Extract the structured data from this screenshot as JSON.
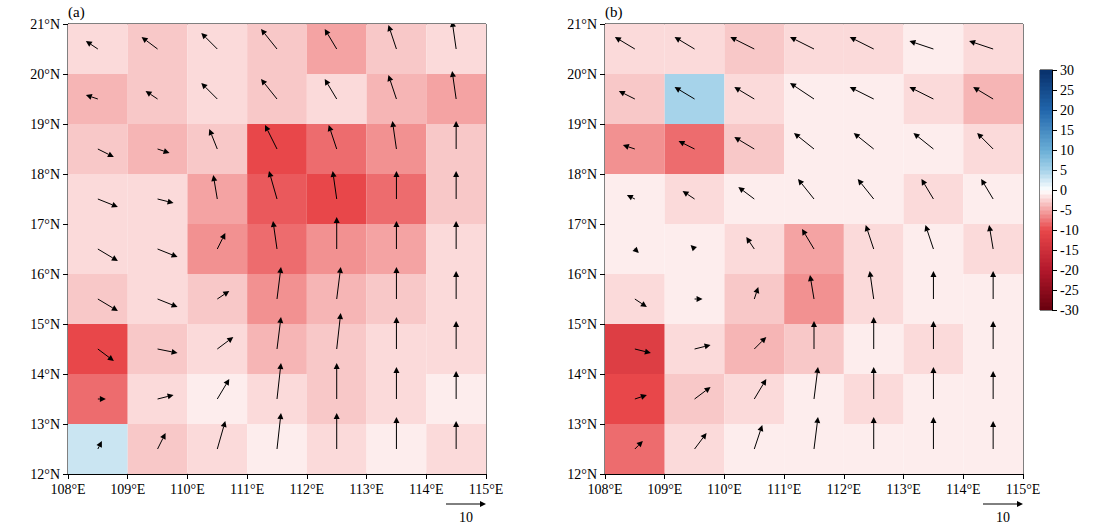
{
  "chart_data": [
    {
      "type": "vector_field",
      "panel_label": "(a)",
      "grid": false,
      "xlim": [
        108,
        115
      ],
      "xticks": [
        {
          "value": 108,
          "label": "108°E"
        },
        {
          "value": 109,
          "label": "109°E"
        },
        {
          "value": 110,
          "label": "110°E"
        },
        {
          "value": 111,
          "label": "111°E"
        },
        {
          "value": 112,
          "label": "112°E"
        },
        {
          "value": 113,
          "label": "113°E"
        },
        {
          "value": 114,
          "label": "114°E"
        },
        {
          "value": 115,
          "label": "115°E"
        }
      ],
      "ylim": [
        12,
        21
      ],
      "yticks": [
        {
          "value": 12,
          "label": "12°N"
        },
        {
          "value": 13,
          "label": "13°N"
        },
        {
          "value": 14,
          "label": "14°N"
        },
        {
          "value": 15,
          "label": "15°N"
        },
        {
          "value": 16,
          "label": "16°N"
        },
        {
          "value": 17,
          "label": "17°N"
        },
        {
          "value": 18,
          "label": "18°N"
        },
        {
          "value": 19,
          "label": "19°N"
        },
        {
          "value": 20,
          "label": "20°N"
        },
        {
          "value": 21,
          "label": "21°N"
        }
      ],
      "lon": [
        108.5,
        109.5,
        110.5,
        111.5,
        112.5,
        113.5,
        114.5
      ],
      "lat": [
        20.5,
        19.5,
        18.5,
        17.5,
        16.5,
        15.5,
        14.5,
        13.5,
        12.5
      ],
      "field": [
        [
          -2,
          -3,
          -2,
          -3,
          -5,
          -3,
          -2
        ],
        [
          -4,
          -3,
          -2,
          -3,
          -2,
          -4,
          -5
        ],
        [
          -3,
          -4,
          -3,
          -10,
          -8,
          -6,
          -3
        ],
        [
          -2,
          -2,
          -5,
          -9,
          -10,
          -8,
          -3
        ],
        [
          -2,
          -2,
          -6,
          -8,
          -6,
          -5,
          -2
        ],
        [
          -3,
          -2,
          -3,
          -6,
          -4,
          -3,
          -2
        ],
        [
          -10,
          -3,
          -2,
          -4,
          -3,
          -2,
          -2
        ],
        [
          -8,
          -2,
          -1,
          -2,
          -3,
          -2,
          -1
        ],
        [
          3,
          -3,
          -2,
          -1,
          -2,
          -1,
          -2
        ]
      ],
      "u": [
        [
          -3,
          -4,
          -4,
          -4,
          -3,
          -2,
          -1
        ],
        [
          -3,
          -3,
          -4,
          -4,
          -3,
          -2,
          -1
        ],
        [
          4,
          3,
          -2,
          -3,
          -2,
          -1,
          0
        ],
        [
          5,
          4,
          -1,
          -2,
          -1,
          0,
          0
        ],
        [
          5,
          5,
          2,
          -1,
          0,
          0,
          0
        ],
        [
          5,
          5,
          3,
          1,
          1,
          0,
          0
        ],
        [
          4,
          5,
          4,
          1,
          1,
          0,
          0
        ],
        [
          2,
          4,
          3,
          1,
          0,
          0,
          0
        ],
        [
          1,
          2,
          2,
          1,
          0,
          0,
          0
        ]
      ],
      "v": [
        [
          2,
          3,
          4,
          5,
          5,
          6,
          7
        ],
        [
          1,
          2,
          4,
          5,
          5,
          6,
          7
        ],
        [
          -2,
          -1,
          5,
          6,
          6,
          7,
          7
        ],
        [
          -2,
          -1,
          6,
          7,
          7,
          7,
          7
        ],
        [
          -3,
          -2,
          4,
          7,
          8,
          7,
          7
        ],
        [
          -3,
          -2,
          2,
          8,
          8,
          8,
          7
        ],
        [
          -3,
          -1,
          3,
          8,
          9,
          8,
          7
        ],
        [
          0,
          1,
          5,
          9,
          9,
          8,
          7
        ],
        [
          2,
          4,
          7,
          9,
          9,
          8,
          7
        ]
      ],
      "reference_vector": 10
    },
    {
      "type": "vector_field",
      "panel_label": "(b)",
      "grid": false,
      "xlim": [
        108,
        115
      ],
      "xticks": [
        {
          "value": 108,
          "label": "108°E"
        },
        {
          "value": 109,
          "label": "109°E"
        },
        {
          "value": 110,
          "label": "110°E"
        },
        {
          "value": 111,
          "label": "111°E"
        },
        {
          "value": 112,
          "label": "112°E"
        },
        {
          "value": 113,
          "label": "113°E"
        },
        {
          "value": 114,
          "label": "114°E"
        },
        {
          "value": 115,
          "label": "115°E"
        }
      ],
      "ylim": [
        12,
        21
      ],
      "yticks": [
        {
          "value": 12,
          "label": "12°N"
        },
        {
          "value": 13,
          "label": "13°N"
        },
        {
          "value": 14,
          "label": "14°N"
        },
        {
          "value": 15,
          "label": "15°N"
        },
        {
          "value": 16,
          "label": "16°N"
        },
        {
          "value": 17,
          "label": "17°N"
        },
        {
          "value": 18,
          "label": "18°N"
        },
        {
          "value": 19,
          "label": "19°N"
        },
        {
          "value": 20,
          "label": "20°N"
        },
        {
          "value": 21,
          "label": "21°N"
        }
      ],
      "lon": [
        108.5,
        109.5,
        110.5,
        111.5,
        112.5,
        113.5,
        114.5
      ],
      "lat": [
        20.5,
        19.5,
        18.5,
        17.5,
        16.5,
        15.5,
        14.5,
        13.5,
        12.5
      ],
      "field": [
        [
          -2,
          -2,
          -3,
          -2,
          -2,
          -1,
          -2
        ],
        [
          -3,
          5,
          -2,
          -1,
          -1,
          -2,
          -4
        ],
        [
          -6,
          -8,
          -3,
          -1,
          -1,
          -1,
          -2
        ],
        [
          -1,
          -2,
          -1,
          -1,
          -1,
          -2,
          -1
        ],
        [
          -1,
          -1,
          -2,
          -5,
          -2,
          -1,
          -2
        ],
        [
          -2,
          -1,
          -3,
          -6,
          -2,
          -1,
          -1
        ],
        [
          -12,
          -2,
          -4,
          -3,
          -1,
          -2,
          -1
        ],
        [
          -10,
          -3,
          -2,
          -1,
          -2,
          -1,
          -1
        ],
        [
          -8,
          -2,
          -1,
          -1,
          -1,
          -1,
          -1
        ]
      ],
      "u": [
        [
          -5,
          -5,
          -6,
          -6,
          -6,
          -6,
          -6
        ],
        [
          -4,
          -5,
          -5,
          -6,
          -6,
          -6,
          -5
        ],
        [
          -3,
          -4,
          -5,
          -5,
          -5,
          -5,
          -4
        ],
        [
          -2,
          -3,
          -4,
          -4,
          -4,
          -3,
          -3
        ],
        [
          1,
          -1,
          -2,
          -3,
          -2,
          -2,
          -1
        ],
        [
          3,
          2,
          1,
          -1,
          -1,
          0,
          0
        ],
        [
          4,
          4,
          3,
          0,
          0,
          0,
          0
        ],
        [
          3,
          4,
          3,
          1,
          0,
          0,
          0
        ],
        [
          2,
          3,
          2,
          1,
          0,
          0,
          0
        ]
      ],
      "v": [
        [
          3,
          3,
          3,
          3,
          3,
          2,
          2
        ],
        [
          2,
          3,
          3,
          4,
          3,
          3,
          3
        ],
        [
          1,
          2,
          3,
          4,
          4,
          4,
          4
        ],
        [
          1,
          2,
          3,
          5,
          5,
          5,
          5
        ],
        [
          -1,
          1,
          3,
          5,
          6,
          6,
          6
        ],
        [
          -2,
          0,
          3,
          6,
          7,
          7,
          7
        ],
        [
          -1,
          1,
          3,
          7,
          8,
          7,
          7
        ],
        [
          1,
          3,
          5,
          8,
          8,
          8,
          7
        ],
        [
          2,
          4,
          6,
          8,
          8,
          8,
          7
        ]
      ],
      "reference_vector": 10,
      "colorbar": {
        "range": [
          -30,
          30
        ],
        "ticks": [
          -30,
          -25,
          -20,
          -15,
          -10,
          -5,
          0,
          5,
          10,
          15,
          20,
          25,
          30
        ]
      }
    }
  ]
}
